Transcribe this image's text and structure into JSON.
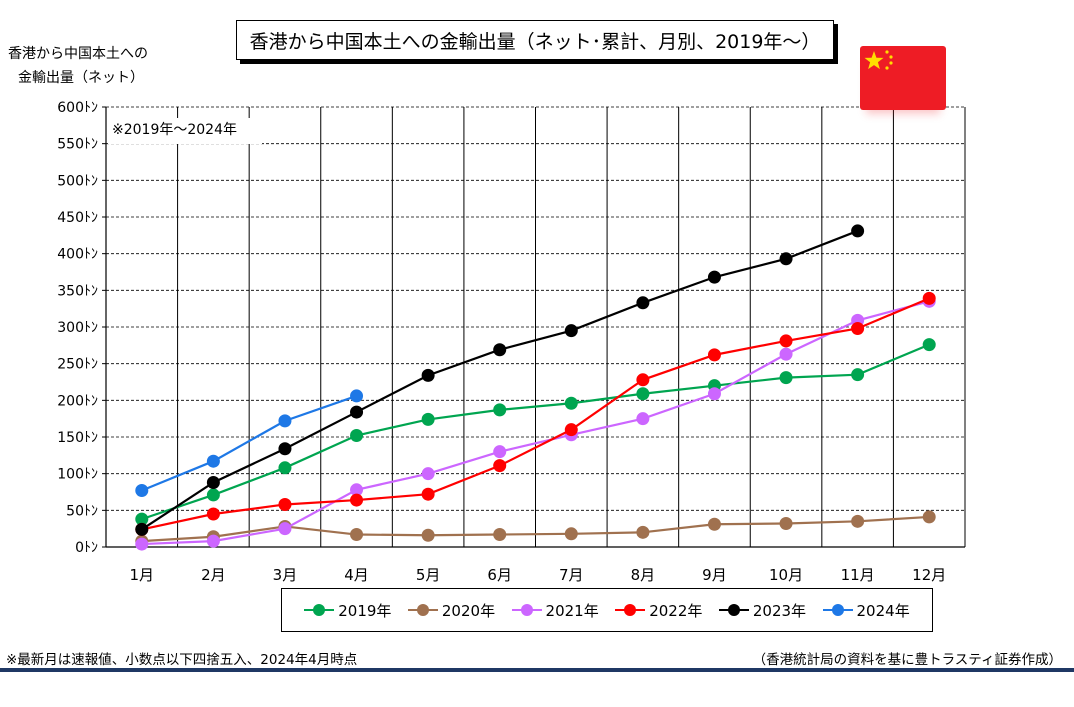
{
  "header": {
    "title": "香港から中国本土への金輸出量（ネット･累計、月別、2019年～）",
    "ylabel_line1": "香港から中国本土への",
    "ylabel_line2": "金輸出量（ネット）",
    "period_note": "※2019年～2024年"
  },
  "flag": {
    "icon": "china-flag-icon",
    "color": "#ee1c25",
    "star_color": "#ffde00"
  },
  "footer": {
    "note_left": "※最新月は速報値、小数点以下四捨五入、2024年4月時点",
    "source_right": "（香港統計局の資料を基に豊トラスティ証券作成）"
  },
  "chart_data": {
    "type": "line",
    "title": "香港から中国本土への金輸出量（ネット･累計、月別、2019年～）",
    "ylabel": "香港から中国本土への金輸出量（ネット）",
    "xlabel": "",
    "categories": [
      "1月",
      "2月",
      "3月",
      "4月",
      "5月",
      "6月",
      "7月",
      "8月",
      "9月",
      "10月",
      "11月",
      "12月"
    ],
    "y_ticks": [
      "0ﾄﾝ",
      "50ﾄﾝ",
      "100ﾄﾝ",
      "150ﾄﾝ",
      "200ﾄﾝ",
      "250ﾄﾝ",
      "300ﾄﾝ",
      "350ﾄﾝ",
      "400ﾄﾝ",
      "450ﾄﾝ",
      "500ﾄﾝ",
      "550ﾄﾝ",
      "600ﾄﾝ"
    ],
    "ylim": [
      0,
      600
    ],
    "grid": true,
    "legend_position": "bottom",
    "series": [
      {
        "name": "2019年",
        "color": "#00a550",
        "values": [
          38,
          71,
          108,
          152,
          174,
          187,
          196,
          209,
          220,
          231,
          235,
          276
        ]
      },
      {
        "name": "2020年",
        "color": "#a0714f",
        "values": [
          8,
          14,
          28,
          17,
          16,
          17,
          18,
          20,
          31,
          32,
          35,
          41
        ]
      },
      {
        "name": "2021年",
        "color": "#cc66ff",
        "values": [
          4,
          8,
          25,
          78,
          100,
          130,
          153,
          175,
          209,
          263,
          309,
          335
        ]
      },
      {
        "name": "2022年",
        "color": "#ff0000",
        "values": [
          24,
          45,
          58,
          64,
          72,
          111,
          160,
          228,
          262,
          281,
          298,
          339
        ]
      },
      {
        "name": "2023年",
        "color": "#000000",
        "values": [
          24,
          88,
          134,
          184,
          234,
          269,
          295,
          333,
          368,
          393,
          431,
          null
        ]
      },
      {
        "name": "2024年",
        "color": "#1e78e6",
        "values": [
          77,
          117,
          172,
          206,
          null,
          null,
          null,
          null,
          null,
          null,
          null,
          null
        ]
      }
    ]
  }
}
